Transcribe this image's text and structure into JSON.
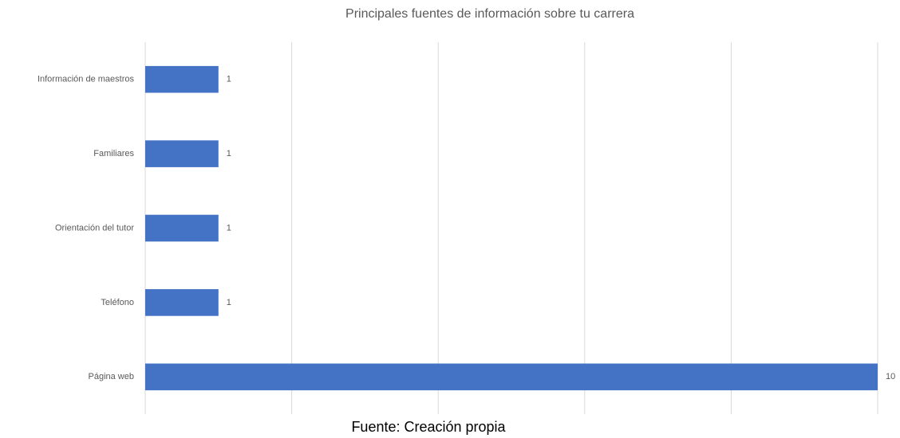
{
  "chart_data": {
    "type": "bar",
    "orientation": "horizontal",
    "title": "Principales fuentes de información sobre tu carrera",
    "categories": [
      "Información de maestros",
      "Familiares",
      "Orientación del tutor",
      "Teléfono",
      "Página web"
    ],
    "values": [
      1,
      1,
      1,
      1,
      10
    ],
    "color": "#4472c4",
    "xlim": [
      0,
      10
    ],
    "xticks": [
      0,
      2,
      4,
      6,
      8,
      10
    ],
    "grid": true,
    "caption": "Fuente: Creación propia"
  }
}
